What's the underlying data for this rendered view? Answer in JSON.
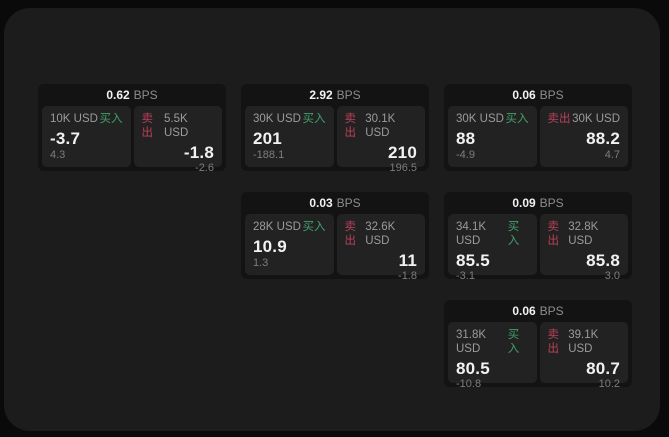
{
  "labels": {
    "bps_unit": "BPS",
    "buy": "买入",
    "sell": "卖出"
  },
  "colors": {
    "buy_green": "#42a06a",
    "sell_red": "#bb4059",
    "panel_bg": "#1c1c1c",
    "card_bg": "#131313",
    "side_bg": "#222222"
  },
  "cards": [
    {
      "row": 1,
      "col": 1,
      "bps": "0.62",
      "buy": {
        "amount": "10K USD",
        "price": "-3.7",
        "delta": "4.3"
      },
      "sell": {
        "amount": "5.5K USD",
        "price": "-1.8",
        "delta": "-2.6"
      }
    },
    {
      "row": 1,
      "col": 2,
      "bps": "2.92",
      "buy": {
        "amount": "30K USD",
        "price": "201",
        "delta": "-188.1"
      },
      "sell": {
        "amount": "30.1K USD",
        "price": "210",
        "delta": "196.5"
      }
    },
    {
      "row": 1,
      "col": 3,
      "bps": "0.06",
      "buy": {
        "amount": "30K USD",
        "price": "88",
        "delta": "-4.9"
      },
      "sell": {
        "amount": "30K USD",
        "price": "88.2",
        "delta": "4.7"
      }
    },
    {
      "row": 2,
      "col": 2,
      "bps": "0.03",
      "buy": {
        "amount": "28K USD",
        "price": "10.9",
        "delta": "1.3"
      },
      "sell": {
        "amount": "32.6K USD",
        "price": "11",
        "delta": "-1.8"
      }
    },
    {
      "row": 2,
      "col": 3,
      "bps": "0.09",
      "buy": {
        "amount": "34.1K USD",
        "price": "85.5",
        "delta": "-3.1"
      },
      "sell": {
        "amount": "32.8K USD",
        "price": "85.8",
        "delta": "3.0"
      }
    },
    {
      "row": 3,
      "col": 3,
      "bps": "0.06",
      "buy": {
        "amount": "31.8K USD",
        "price": "80.5",
        "delta": "-10.8"
      },
      "sell": {
        "amount": "39.1K USD",
        "price": "80.7",
        "delta": "10.2"
      }
    }
  ]
}
